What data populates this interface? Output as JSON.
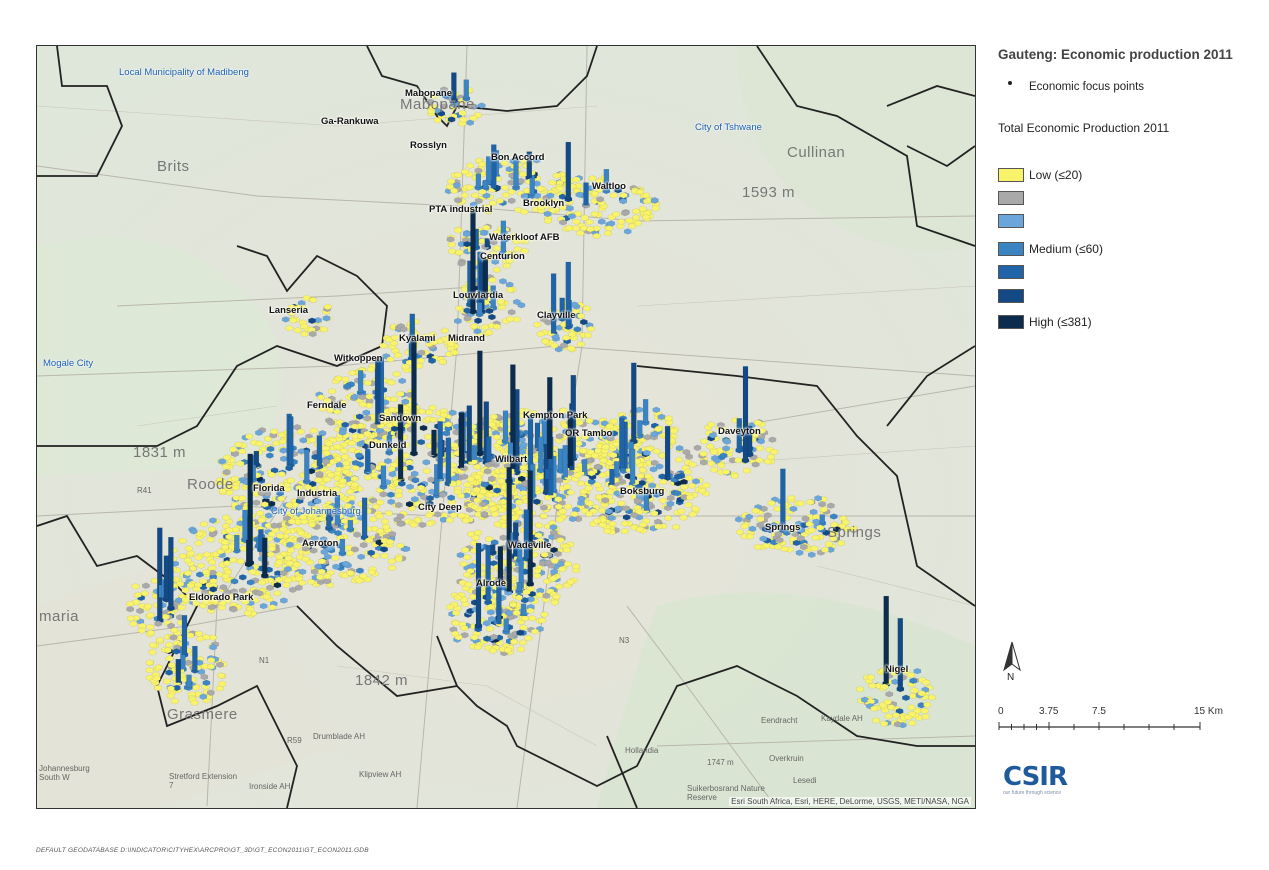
{
  "legend": {
    "title": "Gauteng: Economic production 2011",
    "point_label": "Economic focus points",
    "subtitle": "Total Economic Production 2011",
    "classes": [
      {
        "label": "Low (≤20)",
        "color": "#f8f36a"
      },
      {
        "label": "",
        "color": "#a9a9a9"
      },
      {
        "label": "",
        "color": "#6aa6d9"
      },
      {
        "label": "Medium (≤60)",
        "color": "#3a84c4"
      },
      {
        "label": "",
        "color": "#1f64a8"
      },
      {
        "label": "",
        "color": "#134a86"
      },
      {
        "label": "High (≤381)",
        "color": "#0c2c4e"
      }
    ]
  },
  "north_label": "N",
  "scale": {
    "ticks": [
      "0",
      "3.75",
      "7.5",
      "15 Km"
    ]
  },
  "logo": {
    "text": "CSIR",
    "tagline": "our future through science"
  },
  "attribution": "Esri South Africa, Esri, HERE, DeLorme, USGS, METI/NASA, NGA",
  "footer": "DEFAULT GEODATABASE D:\\INDICATOR\\CITYHEX\\ARCPRO\\GT_3D\\GT_ECON2011\\GT_ECON2011.GDB",
  "municipalities": {
    "madibeng": "Local Municipality of Madibeng",
    "tshwane": "City of Tshwane",
    "mogale": "Mogale City",
    "johannesburg": "City of Johannesburg"
  },
  "places": {
    "mabopane": "Mabopane",
    "ga_rankuwa": "Ga-Rankuwa",
    "rosslyn": "Rosslyn",
    "bon_accord": "Bon Accord",
    "waltloo": "Waltloo",
    "pta_industrial": "PTA industrial",
    "brooklyn": "Brooklyn",
    "waterkloof": "Waterkloof AFB",
    "centurion": "Centurion",
    "louwlardia": "Louwlardia",
    "lanseria": "Lanseria",
    "clayville": "Clayville",
    "kyalami": "Kyalami",
    "midrand": "Midrand",
    "witkoppen": "Witkoppen",
    "ferndale": "Ferndale",
    "sandown": "Sandown",
    "kempton_park": "Kempton Park",
    "or_tambo": "OR Tambo",
    "daveyton": "Daveyton",
    "dunkeld": "Dunkeld",
    "wilbart": "Wilbart",
    "florida": "Florida",
    "industria": "Industria",
    "city_deep": "City Deep",
    "boksburg": "Boksburg",
    "springs": "Springs",
    "aeroton": "Aeroton",
    "wadeville": "Wadeville",
    "alrode": "Alrode",
    "eldorado_park": "Eldorado Park",
    "nigel": "Nigel"
  },
  "basemap_labels": {
    "mabopane_bg": "Mabopane",
    "brits": "Brits",
    "cullinan": "Cullinan",
    "elev_1593": "1593 m",
    "elev_1831": "1831 m",
    "elev_1842": "1842 m",
    "elev_1747": "1747 m",
    "maria": "maria",
    "springs_bg": "Springs",
    "drumblade": "Drumblade AH",
    "ironside": "Ironside AH",
    "klipview": "Klipview AH",
    "hollandia": "Hollandia",
    "overkruin": "Overkruin",
    "eendracht": "Eendracht",
    "kaydale": "Kaydale AH",
    "lesedi": "Lesedi",
    "suikerbosrand": "Suikerbosrand Nature Reserve",
    "stretford": "Stretford Extension 7",
    "johannesburg_sw": "Johannesburg South W",
    "grasmere": "Grasmere",
    "roode": "Roode",
    "r41": "R41",
    "n3": "N3",
    "n1": "N1",
    "r59": "R59"
  }
}
